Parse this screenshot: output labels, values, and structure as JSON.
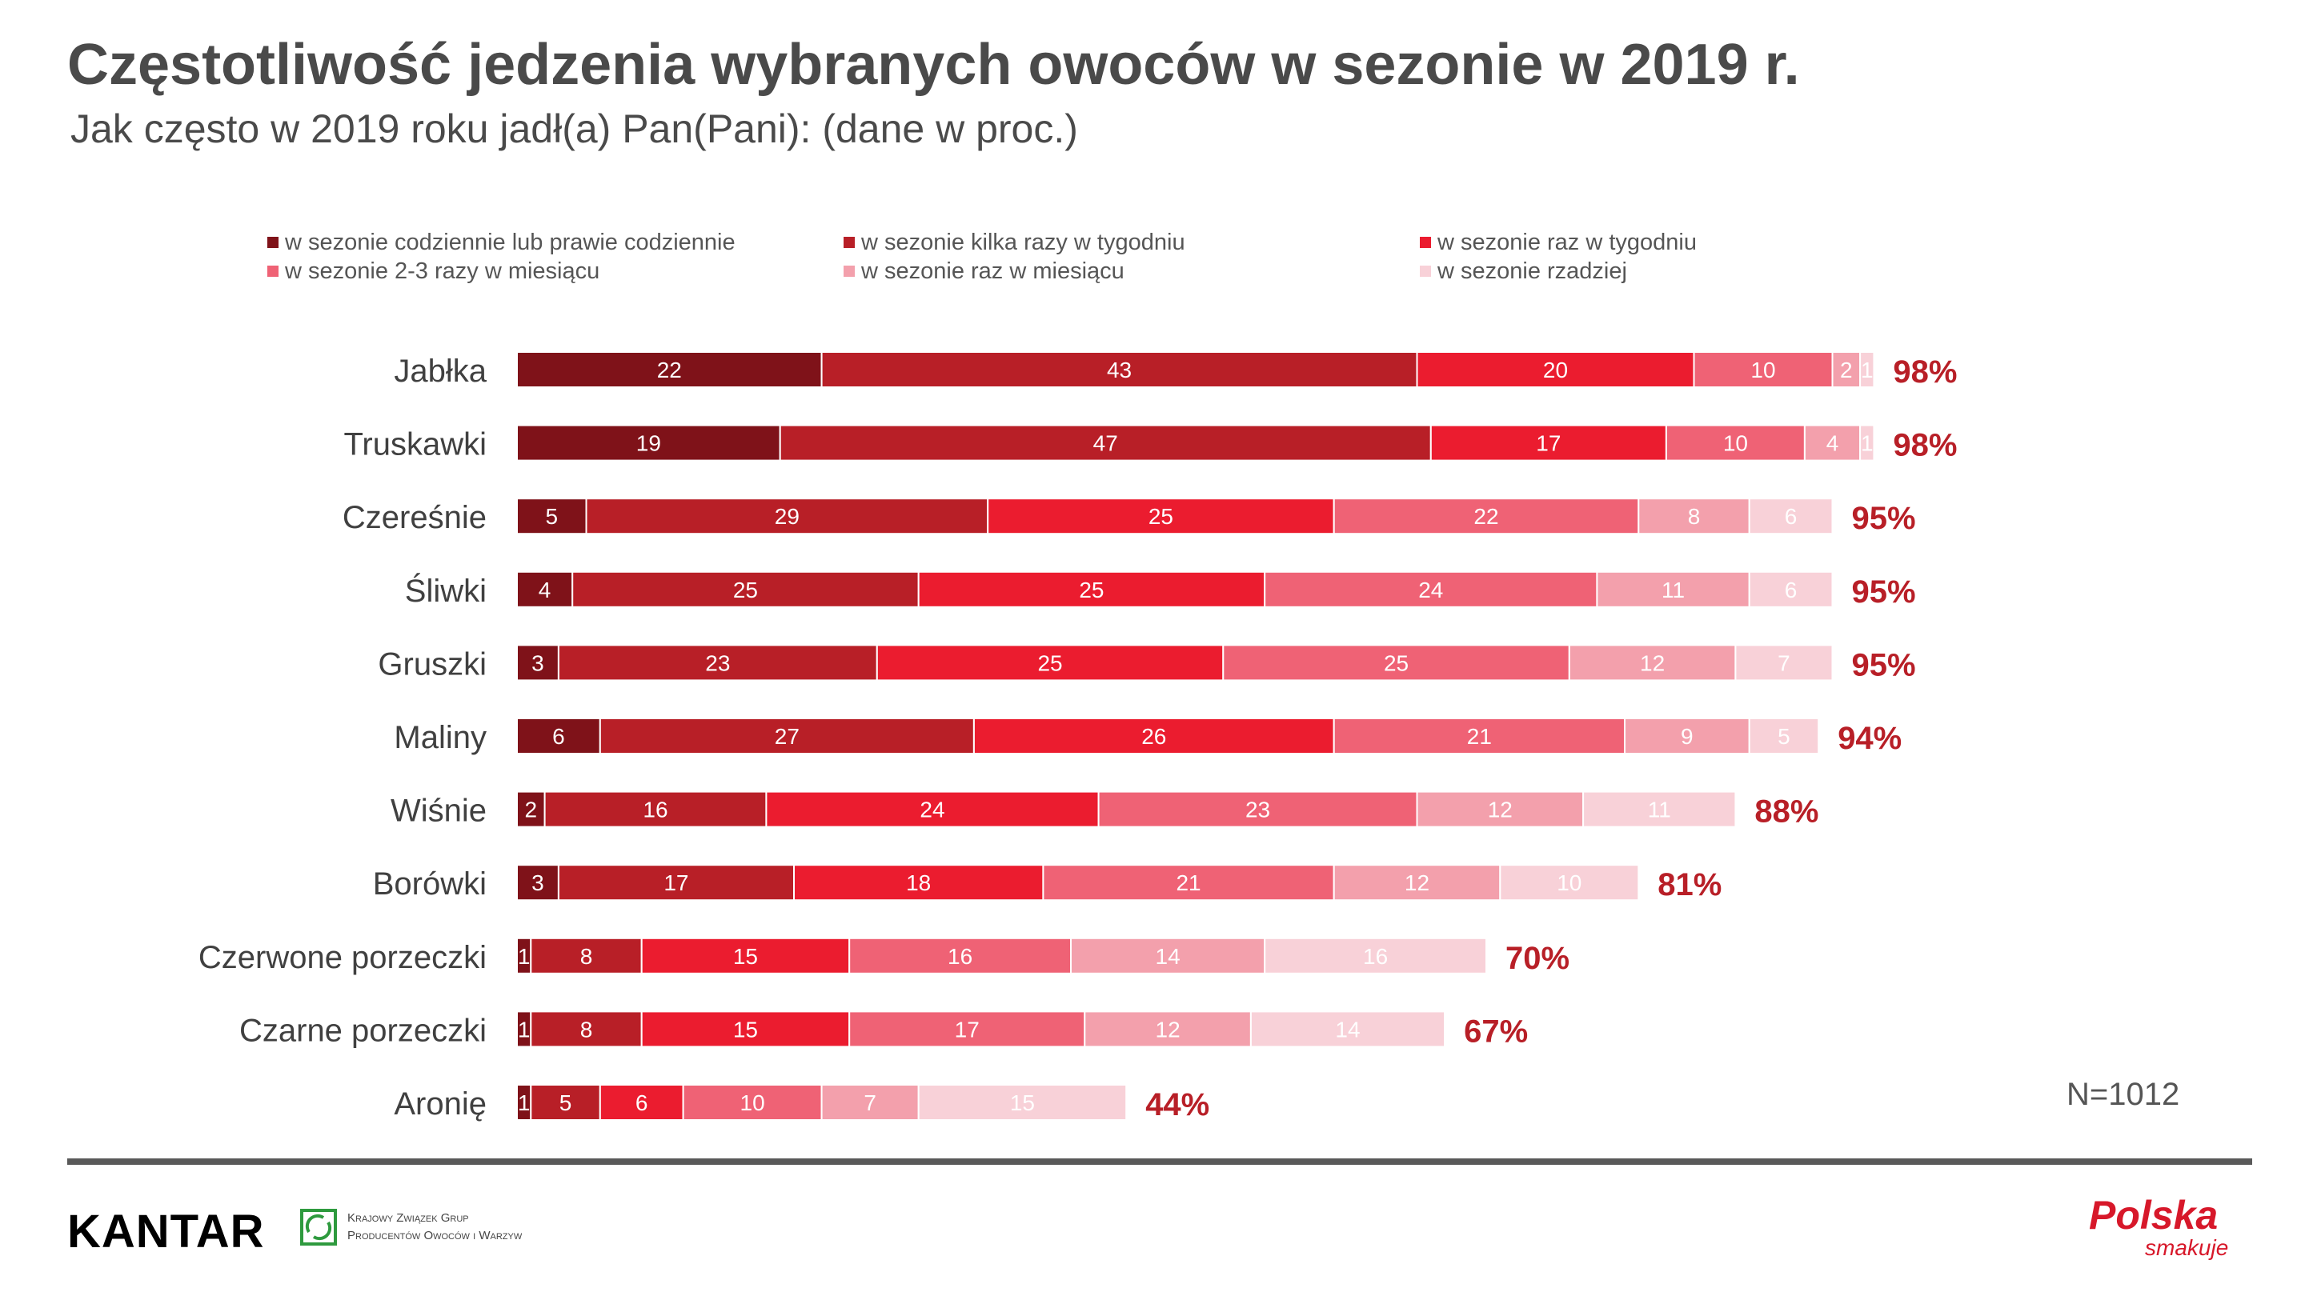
{
  "title": "Częstotliwość jedzenia wybranych owoców w sezonie w 2019 r.",
  "subtitle": "Jak często w 2019 roku jadł(a) Pan(Pani): (dane w proc.)",
  "legend": [
    {
      "label": "w sezonie codziennie lub prawie codziennie",
      "color": "#7f1219"
    },
    {
      "label": "w sezonie kilka razy w tygodniu",
      "color": "#b81f27"
    },
    {
      "label": "w sezonie raz w tygodniu",
      "color": "#eb1c2f"
    },
    {
      "label": "w sezonie 2-3 razy w miesiącu",
      "color": "#ef6275"
    },
    {
      "label": "w sezonie raz w miesiącu",
      "color": "#f3a0ac"
    },
    {
      "label": "w sezonie rzadziej",
      "color": "#f8d1d8"
    }
  ],
  "chart_data": {
    "type": "bar",
    "orientation": "horizontal",
    "stacked": true,
    "categories": [
      "Jabłka",
      "Truskawki",
      "Czereśnie",
      "Śliwki",
      "Gruszki",
      "Maliny",
      "Wiśnie",
      "Borówki",
      "Czerwone porzeczki",
      "Czarne porzeczki",
      "Aronię"
    ],
    "series": [
      {
        "name": "w sezonie codziennie lub prawie codziennie",
        "color": "#7f1219",
        "values": [
          22,
          19,
          5,
          4,
          3,
          6,
          2,
          3,
          1,
          1,
          1
        ]
      },
      {
        "name": "w sezonie kilka razy w tygodniu",
        "color": "#b81f27",
        "values": [
          43,
          47,
          29,
          25,
          23,
          27,
          16,
          17,
          8,
          8,
          5
        ]
      },
      {
        "name": "w sezonie raz w tygodniu",
        "color": "#eb1c2f",
        "values": [
          20,
          17,
          25,
          25,
          25,
          26,
          24,
          18,
          15,
          15,
          6
        ]
      },
      {
        "name": "w sezonie 2-3 razy w miesiącu",
        "color": "#ef6275",
        "values": [
          10,
          10,
          22,
          24,
          25,
          21,
          23,
          21,
          16,
          17,
          10
        ]
      },
      {
        "name": "w sezonie raz w miesiącu",
        "color": "#f3a0ac",
        "values": [
          2,
          4,
          8,
          11,
          12,
          9,
          12,
          12,
          14,
          12,
          7
        ]
      },
      {
        "name": "w sezonie rzadziej",
        "color": "#f8d1d8",
        "values": [
          1,
          1,
          6,
          6,
          7,
          5,
          11,
          10,
          16,
          14,
          15
        ]
      }
    ],
    "totals": [
      "98%",
      "98%",
      "95%",
      "95%",
      "95%",
      "94%",
      "88%",
      "81%",
      "70%",
      "67%",
      "44%"
    ],
    "total_color": "#b81f27",
    "xlim": [
      0,
      100
    ],
    "legend_position": "top"
  },
  "sample_note": "N=1012",
  "footer": {
    "kantar": "KANTAR",
    "kzg_line1": "Krajowy Związek Grup",
    "kzg_line2": "Producentów Owoców i Warzyw",
    "brand_main": "Polska",
    "brand_sub": "smakuje"
  }
}
